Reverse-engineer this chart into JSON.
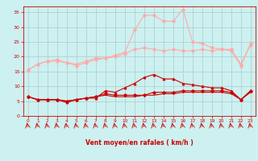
{
  "x": [
    0,
    1,
    2,
    3,
    4,
    5,
    6,
    7,
    8,
    9,
    10,
    11,
    12,
    13,
    14,
    15,
    16,
    17,
    18,
    19,
    20,
    21,
    22,
    23
  ],
  "line1": [
    15.5,
    17.5,
    18.5,
    18.5,
    18.0,
    17.0,
    18.0,
    19.0,
    19.5,
    20.0,
    21.0,
    22.5,
    23.0,
    22.5,
    22.0,
    22.5,
    22.0,
    22.0,
    22.5,
    22.0,
    22.5,
    22.0,
    17.0,
    24.5
  ],
  "line2": [
    15.5,
    17.5,
    18.5,
    19.0,
    18.0,
    17.5,
    18.5,
    19.5,
    19.5,
    20.5,
    21.5,
    29.0,
    34.0,
    34.0,
    32.0,
    32.0,
    36.0,
    25.0,
    24.5,
    23.0,
    22.5,
    22.5,
    17.5,
    24.0
  ],
  "line3": [
    6.5,
    5.5,
    5.5,
    5.5,
    4.5,
    5.5,
    6.0,
    6.0,
    8.5,
    8.0,
    9.5,
    11.0,
    13.0,
    14.0,
    12.5,
    12.5,
    11.0,
    10.5,
    10.0,
    9.5,
    9.5,
    8.5,
    5.5,
    8.5
  ],
  "line4": [
    6.5,
    5.5,
    5.5,
    5.5,
    5.0,
    5.5,
    6.0,
    6.5,
    7.5,
    7.0,
    7.0,
    7.0,
    7.0,
    8.0,
    8.0,
    8.0,
    8.5,
    8.5,
    8.5,
    8.5,
    8.5,
    8.0,
    5.5,
    8.5
  ],
  "line5": [
    6.5,
    5.5,
    5.5,
    5.5,
    5.0,
    5.5,
    6.0,
    6.5,
    7.0,
    6.5,
    6.5,
    6.5,
    7.0,
    7.0,
    7.5,
    7.5,
    8.0,
    8.0,
    8.0,
    8.0,
    8.0,
    7.5,
    5.5,
    8.0
  ],
  "bg_color": "#cdf0f0",
  "grid_color": "#aacccc",
  "line1_color": "#ffaaaa",
  "line2_color": "#ffaaaa",
  "line3_color": "#cc0000",
  "line4_color": "#cc0000",
  "line5_color": "#cc0000",
  "xlabel": "Vent moyen/en rafales ( km/h )",
  "ylim": [
    0,
    37
  ],
  "xlim": [
    -0.5,
    23.5
  ],
  "yticks": [
    0,
    5,
    10,
    15,
    20,
    25,
    30,
    35
  ],
  "xticks": [
    0,
    1,
    2,
    3,
    4,
    5,
    6,
    7,
    8,
    9,
    10,
    11,
    12,
    13,
    14,
    15,
    16,
    17,
    18,
    19,
    20,
    21,
    22,
    23
  ]
}
